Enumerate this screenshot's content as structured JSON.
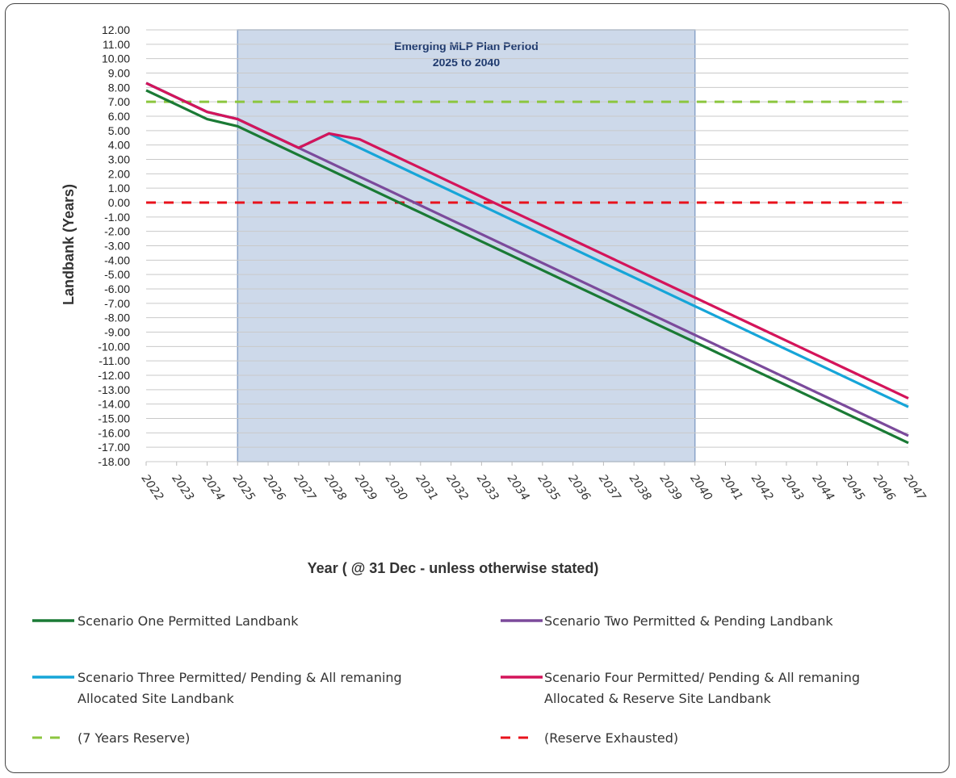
{
  "chart_data": {
    "type": "line",
    "xlabel": "Year ( @ 31 Dec - unless otherwise stated)",
    "ylabel": "Landbank (Years)",
    "ylim": [
      -18,
      12
    ],
    "ytick_step": 1,
    "x": [
      "2022",
      "2023",
      "2024",
      "2025",
      "2026",
      "2027",
      "2028",
      "2029",
      "2030",
      "2031",
      "2032",
      "2033",
      "2034",
      "2035",
      "2036",
      "2037",
      "2038",
      "2039",
      "2040",
      "2041",
      "2042",
      "2043",
      "2044",
      "2045",
      "2046",
      "2047"
    ],
    "band": {
      "from": "2025",
      "to": "2040",
      "label_line1": "Emerging MLP Plan Period",
      "label_line2": "2025 to 2040",
      "color": "#b8c9e1",
      "border": "#8aa3c8"
    },
    "series": [
      {
        "name": "Scenario One Permitted Landbank",
        "color": "#1a7a35",
        "values": [
          7.8,
          6.8,
          5.8,
          5.3,
          4.3,
          3.3,
          2.3,
          1.3,
          0.3,
          -0.7,
          -1.7,
          -2.7,
          -3.7,
          -4.7,
          -5.7,
          -6.7,
          -7.7,
          -8.7,
          -9.7,
          -10.7,
          -11.7,
          -12.7,
          -13.7,
          -14.7,
          -15.7,
          -16.7
        ]
      },
      {
        "name": "Scenario Two Permitted & Pending Landbank",
        "color": "#7b4a9b",
        "values": [
          8.3,
          7.3,
          6.3,
          5.8,
          4.8,
          3.8,
          2.8,
          1.8,
          0.8,
          -0.2,
          -1.2,
          -2.2,
          -3.2,
          -4.2,
          -5.2,
          -6.2,
          -7.2,
          -8.2,
          -9.2,
          -10.2,
          -11.2,
          -12.2,
          -13.2,
          -14.2,
          -15.2,
          -16.2
        ]
      },
      {
        "name_line1": "Scenario Three Permitted/ Pending & All remaning",
        "name_line2": "Allocated Site Landbank",
        "color": "#16a5d8",
        "values": [
          8.3,
          7.3,
          6.3,
          5.8,
          4.8,
          3.8,
          4.8,
          3.8,
          2.8,
          1.8,
          0.8,
          -0.2,
          -1.2,
          -2.2,
          -3.2,
          -4.2,
          -5.2,
          -6.2,
          -7.2,
          -8.2,
          -9.2,
          -10.2,
          -11.2,
          -12.2,
          -13.2,
          -14.2
        ]
      },
      {
        "name_line1": "Scenario Four Permitted/ Pending & All remaning",
        "name_line2": "Allocated & Reserve Site Landbank",
        "color": "#d4145a",
        "values": [
          8.3,
          7.3,
          6.3,
          5.8,
          4.8,
          3.8,
          4.8,
          4.4,
          3.4,
          2.4,
          1.4,
          0.4,
          -0.6,
          -1.6,
          -2.6,
          -3.6,
          -4.6,
          -5.6,
          -6.6,
          -7.6,
          -8.6,
          -9.6,
          -10.6,
          -11.6,
          -12.6,
          -13.6
        ]
      }
    ],
    "reference_lines": [
      {
        "name": "(7 Years Reserve)",
        "value": 7,
        "color": "#8cc63f",
        "dashed": true
      },
      {
        "name": "(Reserve Exhausted)",
        "value": 0,
        "color": "#e8121c",
        "dashed": true
      }
    ],
    "grid": true,
    "legend_position": "bottom"
  }
}
